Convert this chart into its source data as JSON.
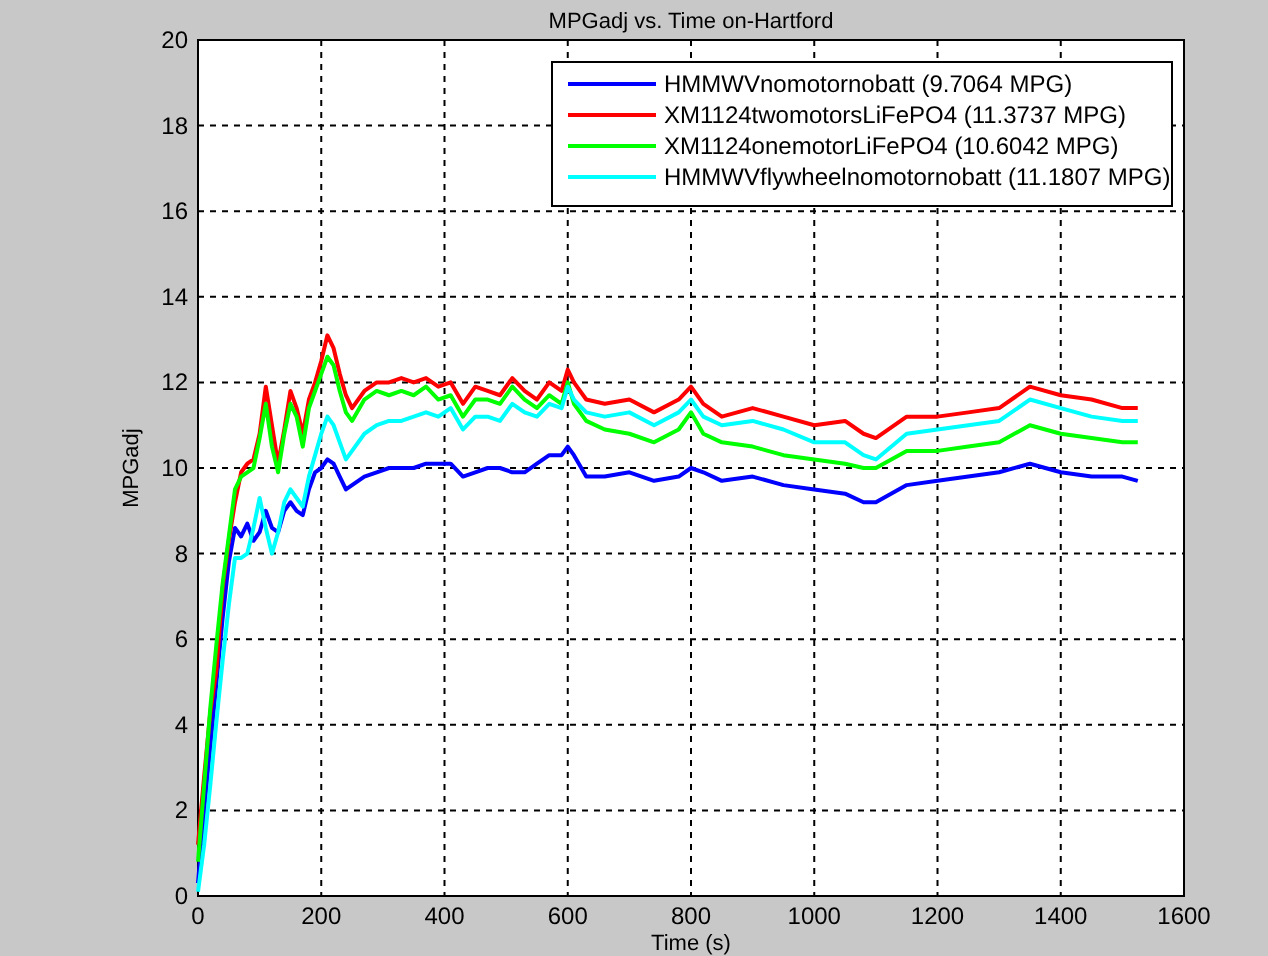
{
  "chart_data": {
    "type": "line",
    "title": "MPGadj vs. Time on-Hartford",
    "xlabel": "Time (s)",
    "ylabel": "MPGadj",
    "x": [
      0,
      10,
      20,
      30,
      40,
      50,
      60,
      70,
      80,
      90,
      100,
      110,
      120,
      130,
      140,
      150,
      160,
      170,
      180,
      190,
      200,
      210,
      220,
      230,
      240,
      250,
      270,
      290,
      310,
      330,
      350,
      370,
      390,
      410,
      430,
      450,
      470,
      490,
      510,
      530,
      550,
      570,
      590,
      600,
      610,
      630,
      660,
      700,
      740,
      780,
      800,
      820,
      850,
      900,
      950,
      1000,
      1050,
      1080,
      1100,
      1150,
      1200,
      1250,
      1300,
      1350,
      1400,
      1450,
      1500,
      1525
    ],
    "series": [
      {
        "name": "HMMWVnomotornobatt (9.7064 MPG)",
        "color": "#0000ff",
        "values": [
          0.3,
          2.0,
          3.5,
          5.0,
          6.5,
          7.8,
          8.6,
          8.4,
          8.7,
          8.3,
          8.5,
          9.0,
          8.6,
          8.5,
          9.0,
          9.2,
          9.0,
          8.9,
          9.5,
          9.9,
          10.0,
          10.2,
          10.1,
          9.8,
          9.5,
          9.6,
          9.8,
          9.9,
          10.0,
          10.0,
          10.0,
          10.1,
          10.1,
          10.1,
          9.8,
          9.9,
          10.0,
          10.0,
          9.9,
          9.9,
          10.1,
          10.3,
          10.3,
          10.5,
          10.3,
          9.8,
          9.8,
          9.9,
          9.7,
          9.8,
          10.0,
          9.9,
          9.7,
          9.8,
          9.6,
          9.5,
          9.4,
          9.2,
          9.2,
          9.6,
          9.7,
          9.8,
          9.9,
          10.1,
          9.9,
          9.8,
          9.8,
          9.7
        ]
      },
      {
        "name": "XM1124twomotorsLiFePO4 (11.3737 MPG)",
        "color": "#ff0000",
        "values": [
          1.2,
          2.8,
          4.3,
          5.3,
          7.2,
          8.3,
          9.2,
          9.9,
          10.1,
          10.2,
          10.8,
          11.9,
          11.0,
          10.1,
          10.9,
          11.8,
          11.4,
          10.8,
          11.6,
          12.0,
          12.5,
          13.1,
          12.8,
          12.2,
          11.7,
          11.4,
          11.8,
          12.0,
          12.0,
          12.1,
          12.0,
          12.1,
          11.9,
          12.0,
          11.5,
          11.9,
          11.8,
          11.7,
          12.1,
          11.8,
          11.6,
          12.0,
          11.8,
          12.3,
          12.0,
          11.6,
          11.5,
          11.6,
          11.3,
          11.6,
          11.9,
          11.5,
          11.2,
          11.4,
          11.2,
          11.0,
          11.1,
          10.8,
          10.7,
          11.2,
          11.2,
          11.3,
          11.4,
          11.9,
          11.7,
          11.6,
          11.4,
          11.4
        ]
      },
      {
        "name": "XM1124onemotorLiFePO4 (10.6042 MPG)",
        "color": "#00ff00",
        "values": [
          0.8,
          2.6,
          4.4,
          5.9,
          7.3,
          8.4,
          9.5,
          9.8,
          9.9,
          10.0,
          10.7,
          11.5,
          10.5,
          9.9,
          10.8,
          11.5,
          11.2,
          10.5,
          11.4,
          11.8,
          12.2,
          12.6,
          12.4,
          11.8,
          11.3,
          11.1,
          11.6,
          11.8,
          11.7,
          11.8,
          11.7,
          11.9,
          11.6,
          11.7,
          11.2,
          11.6,
          11.6,
          11.5,
          11.9,
          11.6,
          11.4,
          11.7,
          11.5,
          12.0,
          11.5,
          11.1,
          10.9,
          10.8,
          10.6,
          10.9,
          11.3,
          10.8,
          10.6,
          10.5,
          10.3,
          10.2,
          10.1,
          10.0,
          10.0,
          10.4,
          10.4,
          10.5,
          10.6,
          11.0,
          10.8,
          10.7,
          10.6,
          10.6
        ]
      },
      {
        "name": "HMMWVflywheelnomotornobatt (11.1807 MPG)",
        "color": "#00ffff",
        "values": [
          0.1,
          1.2,
          2.6,
          4.1,
          5.5,
          6.8,
          7.9,
          7.9,
          8.0,
          8.6,
          9.3,
          8.6,
          8.0,
          8.5,
          9.2,
          9.5,
          9.3,
          9.1,
          9.8,
          10.3,
          10.8,
          11.2,
          11.0,
          10.6,
          10.2,
          10.4,
          10.8,
          11.0,
          11.1,
          11.1,
          11.2,
          11.3,
          11.2,
          11.4,
          10.9,
          11.2,
          11.2,
          11.1,
          11.5,
          11.3,
          11.2,
          11.5,
          11.4,
          11.9,
          11.6,
          11.3,
          11.2,
          11.3,
          11.0,
          11.3,
          11.6,
          11.2,
          11.0,
          11.1,
          10.9,
          10.6,
          10.6,
          10.3,
          10.2,
          10.8,
          10.9,
          11.0,
          11.1,
          11.6,
          11.4,
          11.2,
          11.1,
          11.1
        ]
      }
    ],
    "xlim": [
      0,
      1600
    ],
    "xticks": [
      0,
      200,
      400,
      600,
      800,
      1000,
      1200,
      1400,
      1600
    ],
    "ylim": [
      0,
      20
    ],
    "yticks": [
      0,
      2,
      4,
      6,
      8,
      10,
      12,
      14,
      16,
      18,
      20
    ],
    "grid": true,
    "legend": "top right",
    "line_style": "solid"
  }
}
